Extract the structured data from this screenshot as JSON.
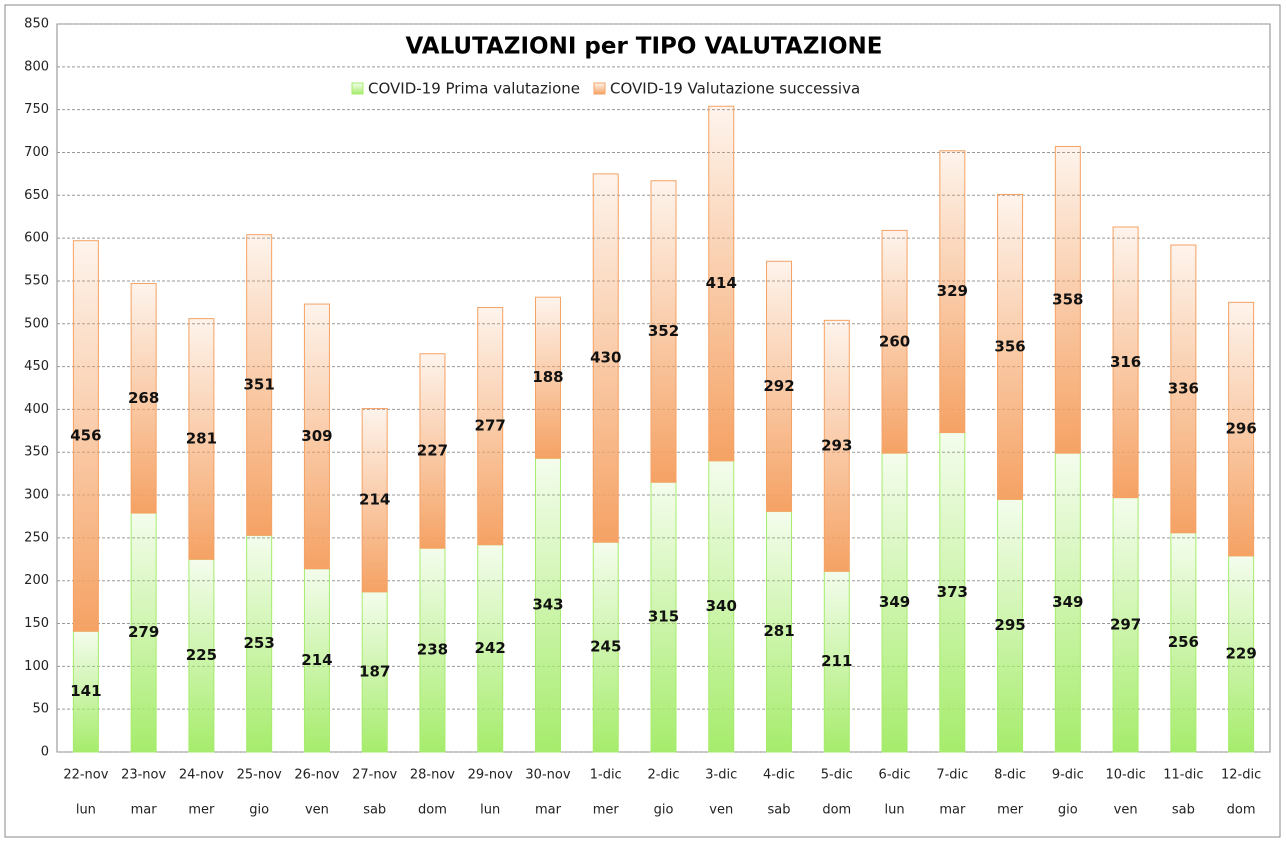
{
  "chart_data": {
    "type": "stacked_bar",
    "title": "VALUTAZIONI per TIPO VALUTAZIONE",
    "categories": [
      "22-nov",
      "23-nov",
      "24-nov",
      "25-nov",
      "26-nov",
      "27-nov",
      "28-nov",
      "29-nov",
      "30-nov",
      "1-dic",
      "2-dic",
      "3-dic",
      "4-dic",
      "5-dic",
      "6-dic",
      "7-dic",
      "8-dic",
      "9-dic",
      "10-dic",
      "11-dic",
      "12-dic"
    ],
    "weekdays": [
      "lun",
      "mar",
      "mer",
      "gio",
      "ven",
      "sab",
      "dom",
      "lun",
      "mar",
      "mer",
      "gio",
      "ven",
      "sab",
      "dom",
      "lun",
      "mar",
      "mer",
      "gio",
      "ven",
      "sab",
      "dom"
    ],
    "series": [
      {
        "name": "COVID-19 Prima valutazione",
        "color": "#a6ec6c",
        "values": [
          141,
          279,
          225,
          253,
          214,
          187,
          238,
          242,
          343,
          245,
          315,
          340,
          281,
          211,
          349,
          373,
          295,
          349,
          297,
          256,
          229
        ]
      },
      {
        "name": "COVID-19 Valutazione successiva",
        "color": "#f5a264",
        "values": [
          456,
          268,
          281,
          351,
          309,
          214,
          227,
          277,
          188,
          430,
          352,
          414,
          292,
          293,
          260,
          329,
          356,
          358,
          316,
          336,
          296
        ]
      }
    ],
    "ylim": [
      0,
      850
    ],
    "yticks": [
      0,
      50,
      100,
      150,
      200,
      250,
      300,
      350,
      400,
      450,
      500,
      550,
      600,
      650,
      700,
      750,
      800,
      850
    ],
    "grid": true,
    "legend": "top"
  }
}
